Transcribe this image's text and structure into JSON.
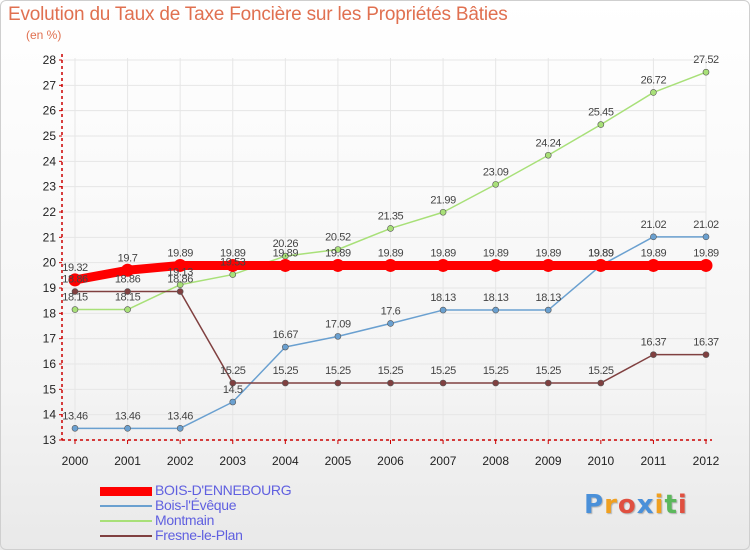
{
  "header": {
    "title": "Evolution du Taux de Taxe Foncière sur les Propriétés Bâties",
    "subtitle": "(en %)"
  },
  "colors": {
    "title": "#e07050",
    "legend_text": "#6060e0",
    "axis": "#cc0000"
  },
  "logo": {
    "text": "Proxiti",
    "letter_colors": [
      "#4a90d9",
      "#f0a020",
      "#e05040",
      "#4a90d9",
      "#f0a020",
      "#5cb85c",
      "#e05040"
    ]
  },
  "chart_data": {
    "type": "line",
    "x": [
      "2000",
      "2001",
      "2002",
      "2003",
      "2004",
      "2005",
      "2006",
      "2007",
      "2008",
      "2009",
      "2010",
      "2011",
      "2012"
    ],
    "ylim": [
      13,
      28
    ],
    "yticks": [
      13,
      14,
      15,
      16,
      17,
      18,
      19,
      20,
      21,
      22,
      23,
      24,
      25,
      26,
      27,
      28
    ],
    "series": [
      {
        "name": "BOIS-D'ENNEBOURG",
        "color": "#ff0000",
        "width": 9,
        "values": [
          19.32,
          19.7,
          19.89,
          19.89,
          19.89,
          19.89,
          19.89,
          19.89,
          19.89,
          19.89,
          19.89,
          19.89,
          19.89
        ],
        "labels": [
          "19.32",
          "19.7",
          "19.89",
          "19.89",
          "19.89",
          "19.89",
          "19.89",
          "19.89",
          "19.89",
          "19.89",
          "19.89",
          "19.89",
          "19.89"
        ]
      },
      {
        "name": "Bois-l'Évêque",
        "color": "#6aa0d0",
        "width": 1.5,
        "values": [
          13.46,
          13.46,
          13.46,
          14.5,
          16.67,
          17.09,
          17.6,
          18.13,
          18.13,
          18.13,
          19.89,
          21.02,
          21.02
        ],
        "labels": [
          "13.46",
          "13.46",
          "13.46",
          "14.5",
          "16.67",
          "17.09",
          "17.6",
          "18.13",
          "18.13",
          "18.13",
          "19.89",
          "21.02",
          "21.02"
        ]
      },
      {
        "name": "Montmain",
        "color": "#a8e078",
        "width": 1.5,
        "values": [
          18.15,
          18.15,
          19.13,
          19.53,
          20.26,
          20.52,
          21.35,
          21.99,
          23.09,
          24.24,
          25.45,
          26.72,
          27.52
        ],
        "labels": [
          "18.15",
          "18.15",
          "19.13",
          "19.53",
          "20.26",
          "20.52",
          "21.35",
          "21.99",
          "23.09",
          "24.24",
          "25.45",
          "26.72",
          "27.52"
        ]
      },
      {
        "name": "Fresne-le-Plan",
        "color": "#804040",
        "width": 1.5,
        "values": [
          18.86,
          18.86,
          18.86,
          15.25,
          15.25,
          15.25,
          15.25,
          15.25,
          15.25,
          15.25,
          15.25,
          16.37,
          16.37
        ],
        "labels": [
          "18.86",
          "18.86",
          "18.86",
          "15.25",
          "15.25",
          "15.25",
          "15.25",
          "15.25",
          "15.25",
          "15.25",
          "15.25",
          "16.37",
          "16.37"
        ]
      }
    ]
  }
}
